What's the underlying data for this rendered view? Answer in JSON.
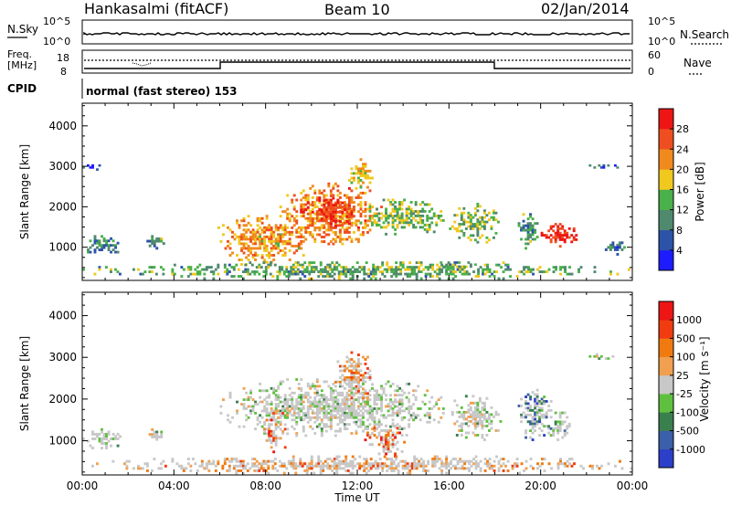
{
  "header": {
    "station": "Hankasalmi (fitACF)",
    "beam": "Beam 10",
    "date": "02/Jan/2014"
  },
  "strip_panels": {
    "nsky_label": "N.Sky",
    "nsearch_label": "N.Search",
    "noise_ticks": [
      "10^5",
      "10^0"
    ],
    "freq_label_1": "Freq.",
    "freq_label_2": "[MHz]",
    "freq_ticks": [
      "18",
      "8"
    ],
    "nave_label": "Nave",
    "nave_ticks": [
      "60",
      "0"
    ],
    "cpid_label": "CPID",
    "cpid_text": "normal (fast stereo) 153"
  },
  "chart_data": [
    {
      "type": "heatmap",
      "name": "power",
      "title": "",
      "xlabel": "Time UT",
      "ylabel": "Slant Range [km]",
      "xlim": [
        0,
        24
      ],
      "ylim": [
        180,
        4560
      ],
      "x_ticks": [
        "00:00",
        "04:00",
        "08:00",
        "12:00",
        "16:00",
        "20:00",
        "00:00"
      ],
      "y_ticks": [
        "1000",
        "2000",
        "3000",
        "4000"
      ],
      "colorbar": {
        "label": "Power [dB]",
        "ticks": [
          "4",
          "8",
          "12",
          "16",
          "20",
          "24",
          "28"
        ],
        "colors": [
          "#1c1cff",
          "#2d53a8",
          "#4f8a6e",
          "#49b04a",
          "#f0c81e",
          "#f08a1e",
          "#ef4f20",
          "#ee1515"
        ]
      },
      "regions": [
        {
          "t0": 0.0,
          "t1": 1.8,
          "r0": 800,
          "r1": 1300,
          "level": 0.3
        },
        {
          "t0": 0.0,
          "t1": 1.0,
          "r0": 2900,
          "r1": 3100,
          "level": 0.15
        },
        {
          "t0": 2.8,
          "t1": 3.6,
          "r0": 950,
          "r1": 1300,
          "level": 0.35
        },
        {
          "t0": 5.8,
          "t1": 10.0,
          "r0": 550,
          "r1": 1800,
          "level": 0.65
        },
        {
          "t0": 8.5,
          "t1": 13.2,
          "r0": 1000,
          "r1": 2600,
          "level": 0.72
        },
        {
          "t0": 9.5,
          "t1": 12.0,
          "r0": 1500,
          "r1": 2300,
          "level": 0.9
        },
        {
          "t0": 11.5,
          "t1": 12.8,
          "r0": 2400,
          "r1": 3200,
          "level": 0.6
        },
        {
          "t0": 12.0,
          "t1": 16.0,
          "r0": 1300,
          "r1": 2200,
          "level": 0.45
        },
        {
          "t0": 16.0,
          "t1": 18.3,
          "r0": 1100,
          "r1": 2100,
          "level": 0.45
        },
        {
          "t0": 15.0,
          "t1": 17.5,
          "r0": 450,
          "r1": 650,
          "level": 0.4
        },
        {
          "t0": 19.0,
          "t1": 20.0,
          "r0": 950,
          "r1": 1900,
          "level": 0.35
        },
        {
          "t0": 20.0,
          "t1": 21.7,
          "r0": 1000,
          "r1": 1600,
          "level": 0.92
        },
        {
          "t0": 22.0,
          "t1": 23.6,
          "r0": 2950,
          "r1": 3100,
          "level": 0.2
        },
        {
          "t0": 22.8,
          "t1": 23.7,
          "r0": 800,
          "r1": 1200,
          "level": 0.25
        },
        {
          "t0": 0.0,
          "t1": 24.0,
          "r0": 200,
          "r1": 650,
          "level": 0.4
        }
      ]
    },
    {
      "type": "heatmap",
      "name": "velocity",
      "title": "",
      "xlabel": "Time UT",
      "ylabel": "Slant Range [km]",
      "xlim": [
        0,
        24
      ],
      "ylim": [
        180,
        4560
      ],
      "x_ticks": [
        "00:00",
        "04:00",
        "08:00",
        "12:00",
        "16:00",
        "20:00",
        "00:00"
      ],
      "y_ticks": [
        "1000",
        "2000",
        "3000",
        "4000"
      ],
      "colorbar": {
        "label": "Velocity [m s⁻¹]",
        "ticks": [
          "1000",
          "500",
          "100",
          "25",
          "-25",
          "-100",
          "-500",
          "-1000"
        ],
        "colors": [
          "#2c3fc8",
          "#3b5fa8",
          "#3a7f4e",
          "#5fc040",
          "#c8c8c8",
          "#f0a050",
          "#f07a10",
          "#f03c10",
          "#ee1515"
        ]
      },
      "regions": [
        {
          "t0": 0.0,
          "t1": 1.8,
          "r0": 800,
          "r1": 1300,
          "level": 0.45
        },
        {
          "t0": 2.8,
          "t1": 3.6,
          "r0": 950,
          "r1": 1300,
          "level": 0.45
        },
        {
          "t0": 6.0,
          "t1": 16.0,
          "r0": 1100,
          "r1": 2500,
          "level": 0.47
        },
        {
          "t0": 7.8,
          "t1": 9.0,
          "r0": 600,
          "r1": 1800,
          "level": 0.78
        },
        {
          "t0": 12.3,
          "t1": 14.2,
          "r0": 550,
          "r1": 1500,
          "level": 0.8
        },
        {
          "t0": 11.0,
          "t1": 12.8,
          "r0": 2000,
          "r1": 3200,
          "level": 0.7
        },
        {
          "t0": 16.0,
          "t1": 18.3,
          "r0": 1000,
          "r1": 2100,
          "level": 0.48
        },
        {
          "t0": 19.0,
          "t1": 20.6,
          "r0": 1000,
          "r1": 2300,
          "level": 0.24
        },
        {
          "t0": 20.3,
          "t1": 21.3,
          "r0": 1000,
          "r1": 1700,
          "level": 0.33
        },
        {
          "t0": 22.0,
          "t1": 23.6,
          "r0": 2950,
          "r1": 3100,
          "level": 0.47
        },
        {
          "t0": 0.0,
          "t1": 24.0,
          "r0": 200,
          "r1": 650,
          "level": 0.66
        }
      ]
    }
  ]
}
